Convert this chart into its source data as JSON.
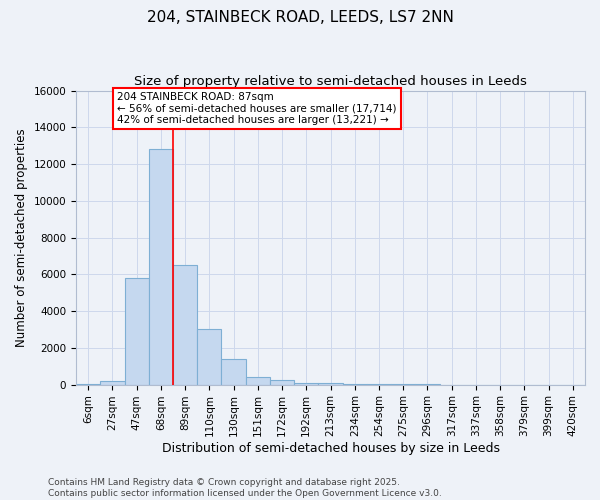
{
  "title": "204, STAINBECK ROAD, LEEDS, LS7 2NN",
  "subtitle": "Size of property relative to semi-detached houses in Leeds",
  "xlabel": "Distribution of semi-detached houses by size in Leeds",
  "ylabel": "Number of semi-detached properties",
  "bar_color": "#c5d8ef",
  "bar_edgecolor": "#7eafd4",
  "categories": [
    "6sqm",
    "27sqm",
    "47sqm",
    "68sqm",
    "89sqm",
    "110sqm",
    "130sqm",
    "151sqm",
    "172sqm",
    "192sqm",
    "213sqm",
    "234sqm",
    "254sqm",
    "275sqm",
    "296sqm",
    "317sqm",
    "337sqm",
    "358sqm",
    "379sqm",
    "399sqm",
    "420sqm"
  ],
  "values": [
    50,
    200,
    5800,
    12800,
    6500,
    3000,
    1400,
    400,
    250,
    100,
    60,
    50,
    30,
    15,
    10,
    5,
    5,
    3,
    3,
    3,
    3
  ],
  "redline_x": 3.5,
  "redline_color": "red",
  "annotation_text": "204 STAINBECK ROAD: 87sqm\n← 56% of semi-detached houses are smaller (17,714)\n42% of semi-detached houses are larger (13,221) →",
  "annotation_box_color": "white",
  "annotation_box_edgecolor": "red",
  "ylim": [
    0,
    16000
  ],
  "yticks": [
    0,
    2000,
    4000,
    6000,
    8000,
    10000,
    12000,
    14000,
    16000
  ],
  "grid_color": "#cdd8ec",
  "background_color": "#eef2f8",
  "footer_text": "Contains HM Land Registry data © Crown copyright and database right 2025.\nContains public sector information licensed under the Open Government Licence v3.0.",
  "title_fontsize": 11,
  "subtitle_fontsize": 9.5,
  "xlabel_fontsize": 9,
  "ylabel_fontsize": 8.5,
  "tick_fontsize": 7.5,
  "annotation_fontsize": 7.5,
  "footer_fontsize": 6.5
}
